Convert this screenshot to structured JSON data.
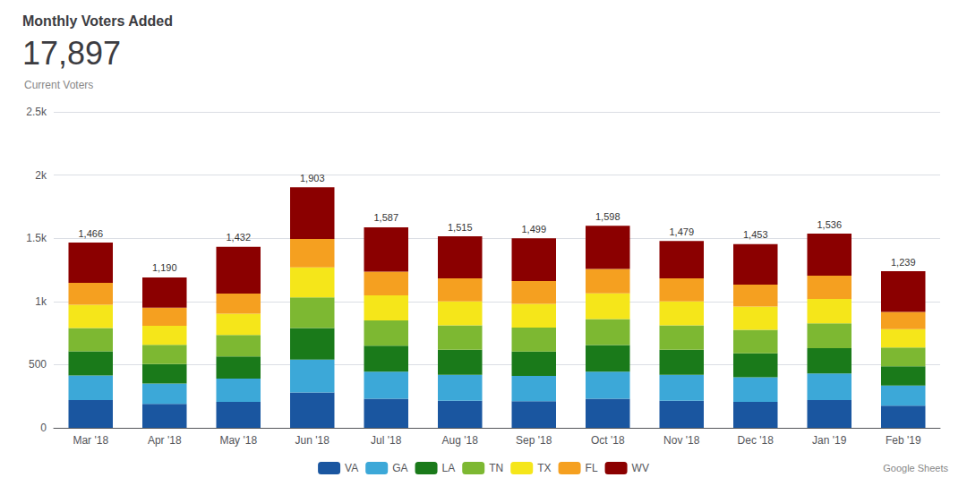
{
  "chart_data": {
    "type": "bar",
    "title": "Monthly Voters Added",
    "kpi_value": "17,897",
    "kpi_label": "Current Voters",
    "footnote": "Google Sheets",
    "stacked": true,
    "grid": true,
    "legend": "bottom",
    "categories": [
      "Mar '18",
      "Apr '18",
      "May '18",
      "Jun '18",
      "Jul '18",
      "Aug '18",
      "Sep '18",
      "Oct '18",
      "Nov '18",
      "Dec '18",
      "Jan '19",
      "Feb '19"
    ],
    "series": [
      {
        "name": "VA",
        "color": "#1a56a0",
        "values": [
          220,
          190,
          205,
          280,
          230,
          215,
          210,
          230,
          215,
          205,
          220,
          175
        ]
      },
      {
        "name": "GA",
        "color": "#3ca8d8",
        "values": [
          195,
          160,
          185,
          260,
          215,
          205,
          200,
          215,
          205,
          195,
          210,
          160
        ]
      },
      {
        "name": "LA",
        "color": "#1a7a1a",
        "values": [
          190,
          155,
          175,
          250,
          205,
          198,
          193,
          210,
          198,
          190,
          200,
          152
        ]
      },
      {
        "name": "TN",
        "color": "#7db832",
        "values": [
          185,
          152,
          170,
          242,
          200,
          193,
          190,
          206,
          193,
          186,
          196,
          148
        ]
      },
      {
        "name": "TX",
        "color": "#f5e61a",
        "values": [
          183,
          150,
          168,
          238,
          198,
          190,
          188,
          203,
          190,
          183,
          193,
          145
        ]
      },
      {
        "name": "FL",
        "color": "#f5a020",
        "values": [
          175,
          143,
          160,
          225,
          188,
          182,
          180,
          193,
          182,
          175,
          185,
          138
        ]
      },
      {
        "name": "WV",
        "color": "#8b0000",
        "values": [
          318,
          240,
          369,
          408,
          351,
          332,
          338,
          341,
          296,
          319,
          332,
          321
        ]
      }
    ],
    "totals": [
      1466,
      1190,
      1432,
      1903,
      1587,
      1515,
      1499,
      1598,
      1479,
      1453,
      1536,
      1239
    ],
    "total_labels": [
      "1,466",
      "1,190",
      "1,432",
      "1,903",
      "1,587",
      "1,515",
      "1,499",
      "1,598",
      "1,479",
      "1,453",
      "1,536",
      "1,239"
    ],
    "ylim": [
      0,
      2500
    ],
    "yticks": [
      0,
      500,
      {
        "value": 1000,
        "label": "1k"
      },
      {
        "value": 1500,
        "label": "1.5k"
      },
      {
        "value": 2000,
        "label": "2k"
      },
      {
        "value": 2500,
        "label": "2.5k"
      }
    ]
  }
}
